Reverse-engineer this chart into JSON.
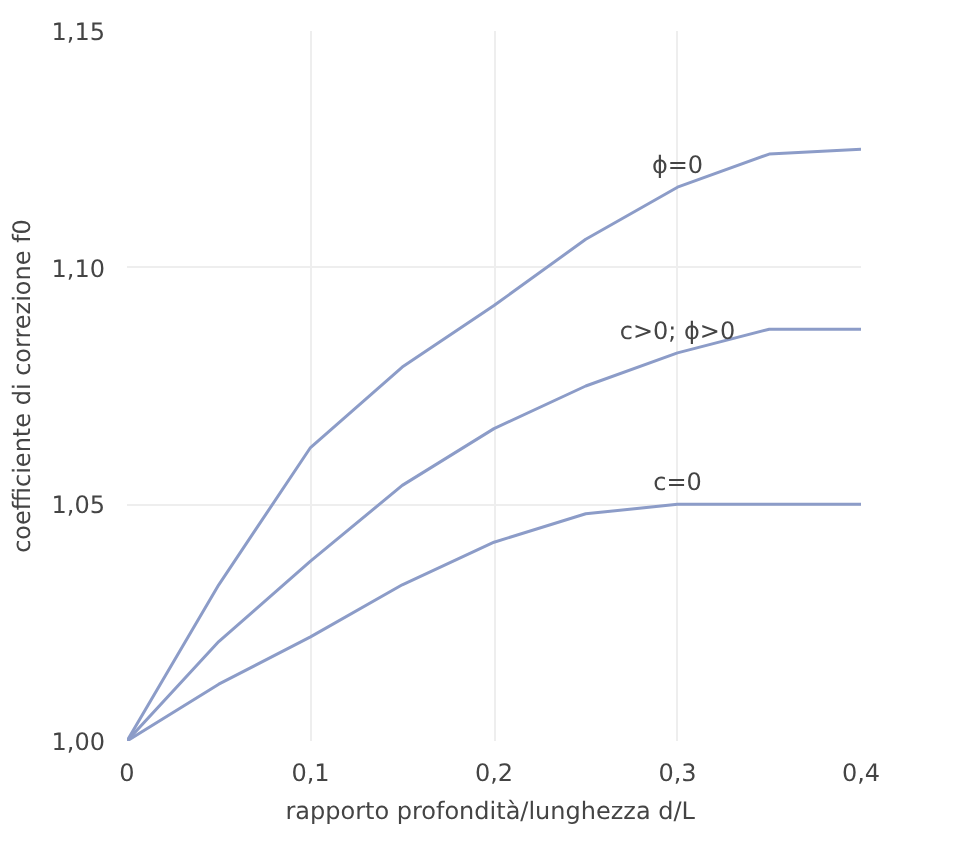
{
  "chart_data": {
    "type": "line",
    "xlabel": "rapporto profondità/lunghezza  d/L",
    "ylabel": "coefficiente di correzione f0",
    "x": [
      0,
      0.05,
      0.1,
      0.15,
      0.2,
      0.25,
      0.3,
      0.35,
      0.4
    ],
    "series": [
      {
        "name": "ϕ=0",
        "color": "#8c9cc8",
        "values": [
          1.0,
          1.033,
          1.062,
          1.079,
          1.092,
          1.106,
          1.117,
          1.124,
          1.125
        ]
      },
      {
        "name": "c>0; ϕ>0",
        "color": "#8c9cc8",
        "values": [
          1.0,
          1.021,
          1.038,
          1.054,
          1.066,
          1.075,
          1.082,
          1.087,
          1.087
        ]
      },
      {
        "name": "c=0",
        "color": "#8c9cc8",
        "values": [
          1.0,
          1.012,
          1.022,
          1.033,
          1.042,
          1.048,
          1.05,
          1.05,
          1.05
        ]
      }
    ],
    "xlim": [
      0,
      0.4
    ],
    "ylim": [
      1.0,
      1.15
    ],
    "xticks": [
      {
        "value": 0,
        "label": "0"
      },
      {
        "value": 0.1,
        "label": "0,1"
      },
      {
        "value": 0.2,
        "label": "0,2"
      },
      {
        "value": 0.3,
        "label": "0,3"
      },
      {
        "value": 0.4,
        "label": "0,4"
      }
    ],
    "yticks": [
      {
        "value": 1.0,
        "label": "1,00"
      },
      {
        "value": 1.05,
        "label": "1,05"
      },
      {
        "value": 1.1,
        "label": "1,10"
      },
      {
        "value": 1.15,
        "label": "1,15"
      }
    ],
    "grid": true,
    "marker": "none",
    "line_style": "solid"
  }
}
